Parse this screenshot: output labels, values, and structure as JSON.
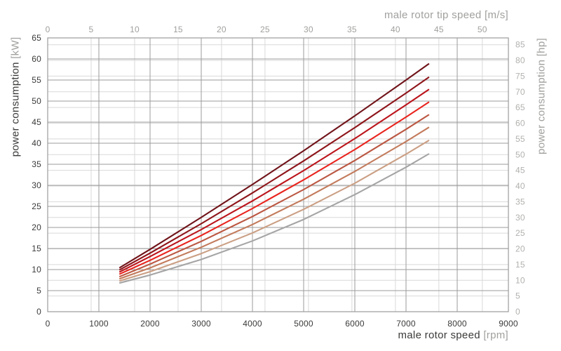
{
  "page": {
    "background": "#ffffff"
  },
  "text_colors": {
    "dark": "#3a3a39",
    "gray": "#a0a09e",
    "right_axis_gray": "#b1b1af"
  },
  "chart_data": {
    "type": "line",
    "title": "",
    "legend": "none",
    "grid": {
      "major_color": "#9b9b9b",
      "minor_color": "#d9d9d9",
      "frame_color": "#9b9b9b",
      "grid_on": true
    },
    "axes": {
      "bottom": {
        "label": "male rotor speed",
        "unit": "[rpm]",
        "min": 0,
        "max": 9000,
        "ticks": [
          0,
          1000,
          2000,
          3000,
          4000,
          5000,
          6000,
          7000,
          8000,
          9000
        ]
      },
      "top": {
        "label": "male rotor tip speed",
        "unit": "[m/s]",
        "min": 0,
        "max_visible_tick": 50,
        "max_at_right_edge": 53,
        "ticks": [
          0,
          5,
          10,
          15,
          20,
          25,
          30,
          35,
          40,
          45,
          50
        ]
      },
      "left": {
        "label": "power consumption",
        "unit": "[kW]",
        "min": 0,
        "max": 65,
        "ticks": [
          0,
          5,
          10,
          15,
          20,
          25,
          30,
          35,
          40,
          45,
          50,
          55,
          60,
          65
        ]
      },
      "right": {
        "label": "power consumption",
        "unit": "[hp]",
        "min": 0,
        "max": 85,
        "kw_per_hp": 0.7457,
        "ticks": [
          0,
          5,
          10,
          15,
          20,
          25,
          30,
          35,
          40,
          45,
          50,
          55,
          60,
          65,
          70,
          75,
          80,
          85
        ]
      }
    },
    "x_rpm": [
      1400,
      2000,
      3000,
      4000,
      5000,
      6000,
      7000,
      7450
    ],
    "series": [
      {
        "name": "curve-1",
        "color": "#701319",
        "values_kw": [
          10.4,
          14.8,
          22.4,
          30.2,
          38.2,
          46.5,
          55.0,
          58.9
        ]
      },
      {
        "name": "curve-2",
        "color": "#8e151a",
        "values_kw": [
          9.9,
          13.9,
          20.9,
          28.2,
          35.8,
          43.7,
          51.9,
          55.7
        ]
      },
      {
        "name": "curve-3",
        "color": "#bb141b",
        "values_kw": [
          9.4,
          13.1,
          19.5,
          26.3,
          33.5,
          41.1,
          49.1,
          52.8
        ]
      },
      {
        "name": "curve-4",
        "color": "#e9241e",
        "values_kw": [
          8.9,
          12.2,
          18.1,
          24.5,
          31.3,
          38.5,
          46.2,
          49.8
        ]
      },
      {
        "name": "curve-5",
        "color": "#bb5742",
        "values_kw": [
          8.3,
          11.3,
          16.7,
          22.6,
          29.0,
          35.9,
          43.3,
          46.8
        ]
      },
      {
        "name": "curve-6",
        "color": "#c37b5c",
        "values_kw": [
          7.8,
          10.4,
          15.3,
          20.7,
          26.7,
          33.3,
          40.4,
          43.8
        ]
      },
      {
        "name": "curve-7",
        "color": "#cb9f84",
        "values_kw": [
          7.3,
          9.5,
          13.8,
          18.7,
          24.3,
          30.5,
          37.4,
          40.7
        ]
      },
      {
        "name": "curve-8",
        "color": "#a5a5a5",
        "values_kw": [
          6.8,
          8.7,
          12.4,
          16.8,
          21.9,
          27.8,
          34.3,
          37.5
        ]
      }
    ]
  }
}
